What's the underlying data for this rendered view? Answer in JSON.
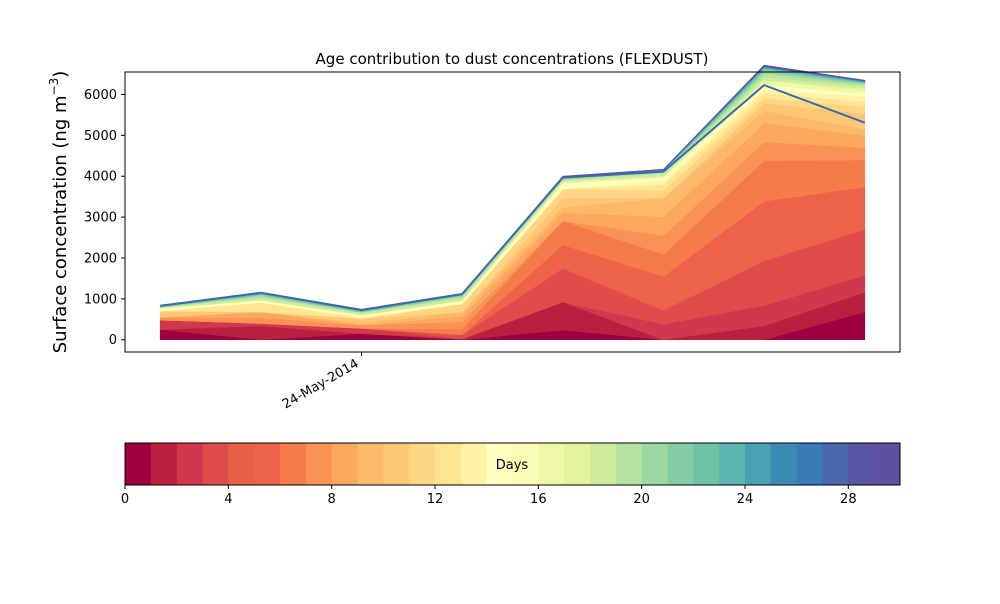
{
  "chart_data": [
    {
      "type": "area",
      "title": "Age contribution to dust concentrations (FLEXDUST)",
      "ylabel_main": "Surface concentration (ng m",
      "ylabel_exp": "−3",
      "ylabel_close": ")",
      "xlabel": "",
      "ylim": [
        -300,
        6550
      ],
      "yticks": [
        0,
        1000,
        2000,
        3000,
        4000,
        5000,
        6000
      ],
      "xticks": [
        {
          "x": 2.0,
          "label": "24-May-2014"
        }
      ],
      "xlim": [
        -0.35,
        7.35
      ],
      "x": [
        0,
        1,
        2,
        3,
        4,
        5,
        6,
        7
      ],
      "total": [
        830,
        1150,
        730,
        1120,
        3970,
        4110,
        6230,
        5310
      ],
      "bands": [
        {
          "age": 0,
          "values": [
            250,
            0,
            150,
            0,
            240,
            0,
            0,
            680
          ]
        },
        {
          "age": 1,
          "values": [
            0,
            340,
            0,
            20,
            680,
            0,
            340,
            480
          ]
        },
        {
          "age": 2,
          "values": [
            230,
            60,
            130,
            0,
            0,
            380,
            500,
            420
          ]
        },
        {
          "age": 3,
          "values": [
            0,
            0,
            0,
            100,
            830,
            340,
            1090,
            1120
          ]
        },
        {
          "age": 4,
          "values": [
            0,
            0,
            0,
            0,
            0,
            0,
            0,
            0
          ]
        },
        {
          "age": 5,
          "values": [
            0,
            0,
            0,
            0,
            570,
            830,
            1460,
            1040
          ]
        },
        {
          "age": 6,
          "values": [
            0,
            0,
            0,
            140,
            590,
            540,
            990,
            660
          ]
        },
        {
          "age": 7,
          "values": [
            70,
            140,
            80,
            180,
            0,
            460,
            460,
            300
          ]
        },
        {
          "age": 8,
          "values": [
            0,
            140,
            0,
            140,
            200,
            460,
            460,
            300
          ]
        },
        {
          "age": 9,
          "values": [
            0,
            0,
            50,
            100,
            130,
            460,
            300,
            150
          ]
        },
        {
          "age": 10,
          "values": [
            150,
            0,
            110,
            0,
            230,
            0,
            190,
            380
          ]
        },
        {
          "age": 11,
          "values": [
            0,
            0,
            0,
            200,
            220,
            180,
            120,
            180
          ]
        },
        {
          "age": 12,
          "values": [
            0,
            230,
            0,
            0,
            0,
            140,
            120,
            120
          ]
        },
        {
          "age": 13,
          "values": [
            0,
            0,
            40,
            0,
            0,
            100,
            100,
            120
          ]
        },
        {
          "age": 14,
          "values": [
            60,
            60,
            0,
            80,
            130,
            80,
            100,
            80
          ]
        },
        {
          "age": 15,
          "values": [
            0,
            0,
            50,
            0,
            0,
            0,
            0,
            0
          ]
        },
        {
          "age": 16,
          "values": [
            10,
            0,
            0,
            0,
            30,
            30,
            120,
            60
          ]
        },
        {
          "age": 17,
          "values": [
            10,
            0,
            0,
            0,
            30,
            0,
            0,
            60
          ]
        },
        {
          "age": 18,
          "values": [
            10,
            60,
            50,
            60,
            20,
            80,
            80,
            60
          ]
        },
        {
          "age": 19,
          "values": [
            10,
            40,
            10,
            40,
            20,
            20,
            80,
            40
          ]
        },
        {
          "age": 20,
          "values": [
            0,
            20,
            10,
            20,
            20,
            10,
            60,
            20
          ]
        },
        {
          "age": 21,
          "values": [
            10,
            20,
            10,
            10,
            10,
            10,
            40,
            20
          ]
        },
        {
          "age": 22,
          "values": [
            0,
            10,
            10,
            10,
            10,
            10,
            30,
            10
          ]
        },
        {
          "age": 23,
          "values": [
            10,
            10,
            10,
            0,
            10,
            10,
            20,
            10
          ]
        },
        {
          "age": 24,
          "values": [
            0,
            10,
            0,
            10,
            0,
            10,
            10,
            10
          ]
        },
        {
          "age": 25,
          "values": [
            0,
            0,
            0,
            0,
            10,
            0,
            10,
            10
          ]
        },
        {
          "age": 26,
          "values": [
            0,
            0,
            10,
            0,
            0,
            10,
            10,
            0
          ]
        },
        {
          "age": 27,
          "values": [
            0,
            10,
            0,
            0,
            10,
            0,
            0,
            10
          ]
        },
        {
          "age": 28,
          "values": [
            0,
            0,
            0,
            10,
            0,
            10,
            10,
            0
          ]
        },
        {
          "age": 29,
          "values": [
            10,
            10,
            10,
            0,
            10,
            0,
            20,
            10
          ]
        }
      ],
      "line_color": "#3e68ac",
      "grid": false
    },
    {
      "type": "heatmap",
      "title": "",
      "label": "Days",
      "range": [
        0,
        30
      ],
      "ticks": [
        0,
        4,
        8,
        12,
        16,
        20,
        24,
        28
      ],
      "colors": [
        "#9e0142",
        "#b9203f",
        "#d0384d",
        "#de4c4b",
        "#ea5e47",
        "#ed6248",
        "#f67b4a",
        "#f99355",
        "#fca75e",
        "#fdb96a",
        "#fdc776",
        "#fed683",
        "#fee592",
        "#fff3a6",
        "#ffffbf",
        "#f9fcb5",
        "#eff8a6",
        "#e3f399",
        "#cfec9d",
        "#b7e2a1",
        "#9dd7a4",
        "#82cda5",
        "#6cc3a5",
        "#5ab4ac",
        "#48a0b2",
        "#3a8cb6",
        "#3a7bb8",
        "#4a68ae",
        "#5954a5",
        "#5e4fa2"
      ]
    }
  ]
}
